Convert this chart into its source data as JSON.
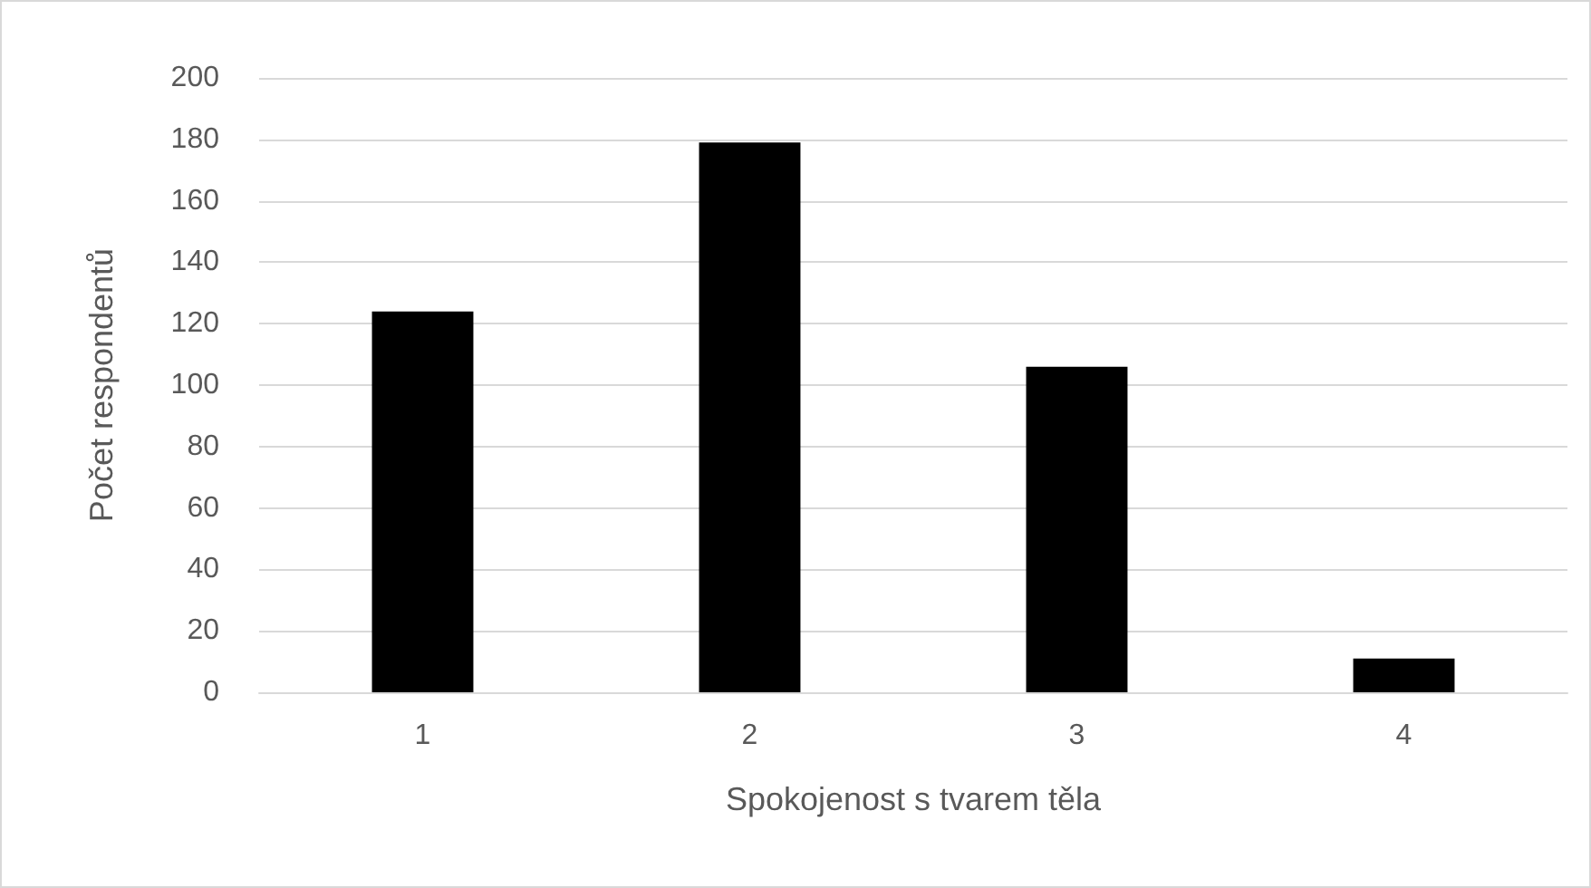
{
  "chart_data": {
    "type": "bar",
    "xlabel": "Spokojenost s tvarem těla",
    "ylabel": "Počet respondentů",
    "categories": [
      "1",
      "2",
      "3",
      "4"
    ],
    "values": [
      124,
      179,
      106,
      11
    ],
    "color": "#000000",
    "ylim": [
      0,
      200
    ],
    "yticks": [
      0,
      20,
      40,
      60,
      80,
      100,
      120,
      140,
      160,
      180,
      200
    ],
    "grid": "y"
  }
}
